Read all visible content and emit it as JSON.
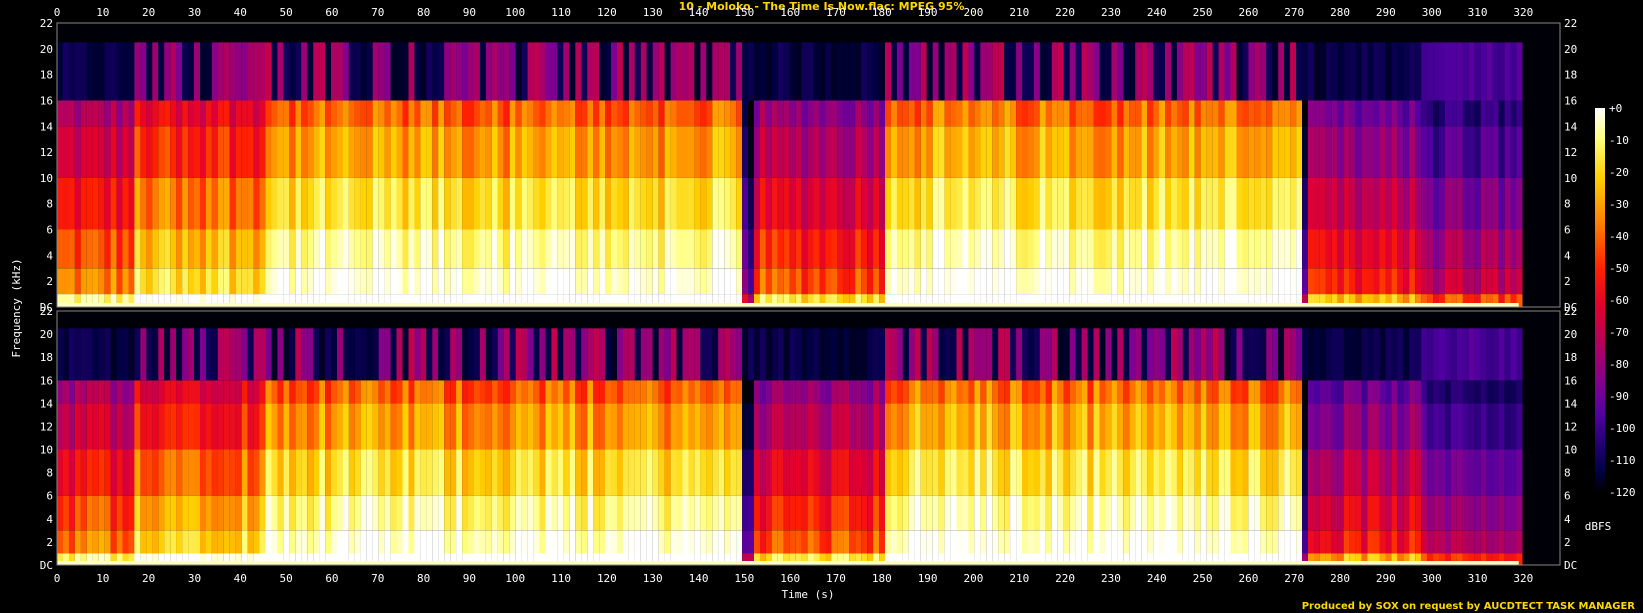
{
  "title": "10 - Moloko - The Time Is Now.flac: MPEG 95%",
  "footer": "Produced by SOX on request by AUCDTECT TASK MANAGER",
  "chart_data": {
    "type": "heatmap",
    "xlabel": "Time (s)",
    "ylabel": "Frequency (kHz)",
    "xlim": [
      0,
      328
    ],
    "ylim": [
      0,
      22
    ],
    "x_ticks": [
      "0",
      "10",
      "20",
      "30",
      "40",
      "50",
      "60",
      "70",
      "80",
      "90",
      "100",
      "110",
      "120",
      "130",
      "140",
      "150",
      "160",
      "170",
      "180",
      "190",
      "200",
      "210",
      "220",
      "230",
      "240",
      "250",
      "260",
      "270",
      "280",
      "290",
      "300",
      "310",
      "320"
    ],
    "y_ticks": [
      "DC",
      "2",
      "4",
      "6",
      "8",
      "10",
      "12",
      "14",
      "16",
      "18",
      "20",
      "22"
    ],
    "channels": 2,
    "lowpass_cutoff_khz": 16,
    "audio_end_s": 319,
    "colorbar": {
      "label": "dBFS",
      "ticks": [
        "+0",
        "-10",
        "-20",
        "-30",
        "-40",
        "-50",
        "-60",
        "-70",
        "-80",
        "-90",
        "-100",
        "-110",
        "-120"
      ],
      "colors": [
        "#ffffff",
        "#ffff80",
        "#ffd000",
        "#ff8000",
        "#ff2000",
        "#e00030",
        "#b00060",
        "#800090",
        "#5000a0",
        "#200070",
        "#000040",
        "#000000"
      ]
    },
    "segments": [
      {
        "start": 0,
        "end": 16,
        "level": 0.55
      },
      {
        "start": 16,
        "end": 45,
        "level": 0.68
      },
      {
        "start": 45,
        "end": 149,
        "level": 0.8
      },
      {
        "start": 149,
        "end": 151,
        "level": 0.15
      },
      {
        "start": 151,
        "end": 180,
        "level": 0.5
      },
      {
        "start": 180,
        "end": 271,
        "level": 0.82
      },
      {
        "start": 271,
        "end": 273,
        "level": 0.12
      },
      {
        "start": 273,
        "end": 297,
        "level": 0.42
      },
      {
        "start": 297,
        "end": 319,
        "level": 0.3
      }
    ]
  }
}
